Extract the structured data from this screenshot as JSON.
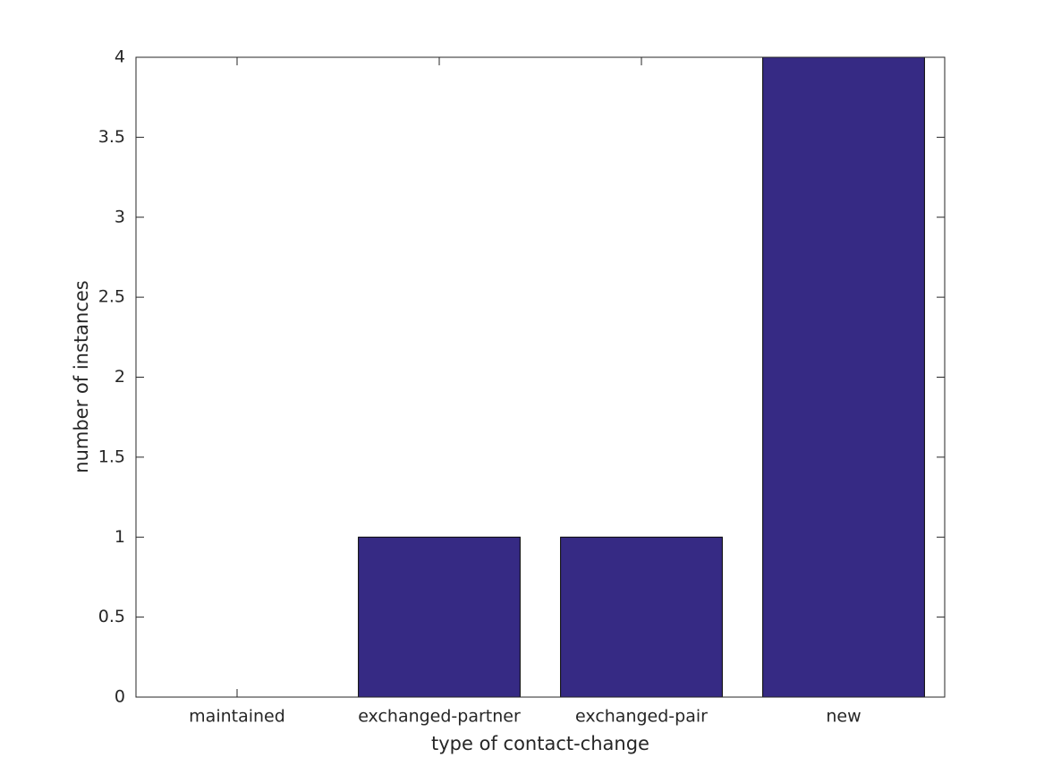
{
  "chart_data": {
    "type": "bar",
    "categories": [
      "maintained",
      "exchanged-partner",
      "exchanged-pair",
      "new"
    ],
    "values": [
      0,
      1,
      1,
      4
    ],
    "color": "#362a84",
    "xlabel": "type of contact-change",
    "ylabel": "number of instances",
    "ylim": [
      0,
      4
    ],
    "yticks": [
      0,
      0.5,
      1,
      1.5,
      2,
      2.5,
      3,
      3.5,
      4
    ],
    "grid": false
  }
}
